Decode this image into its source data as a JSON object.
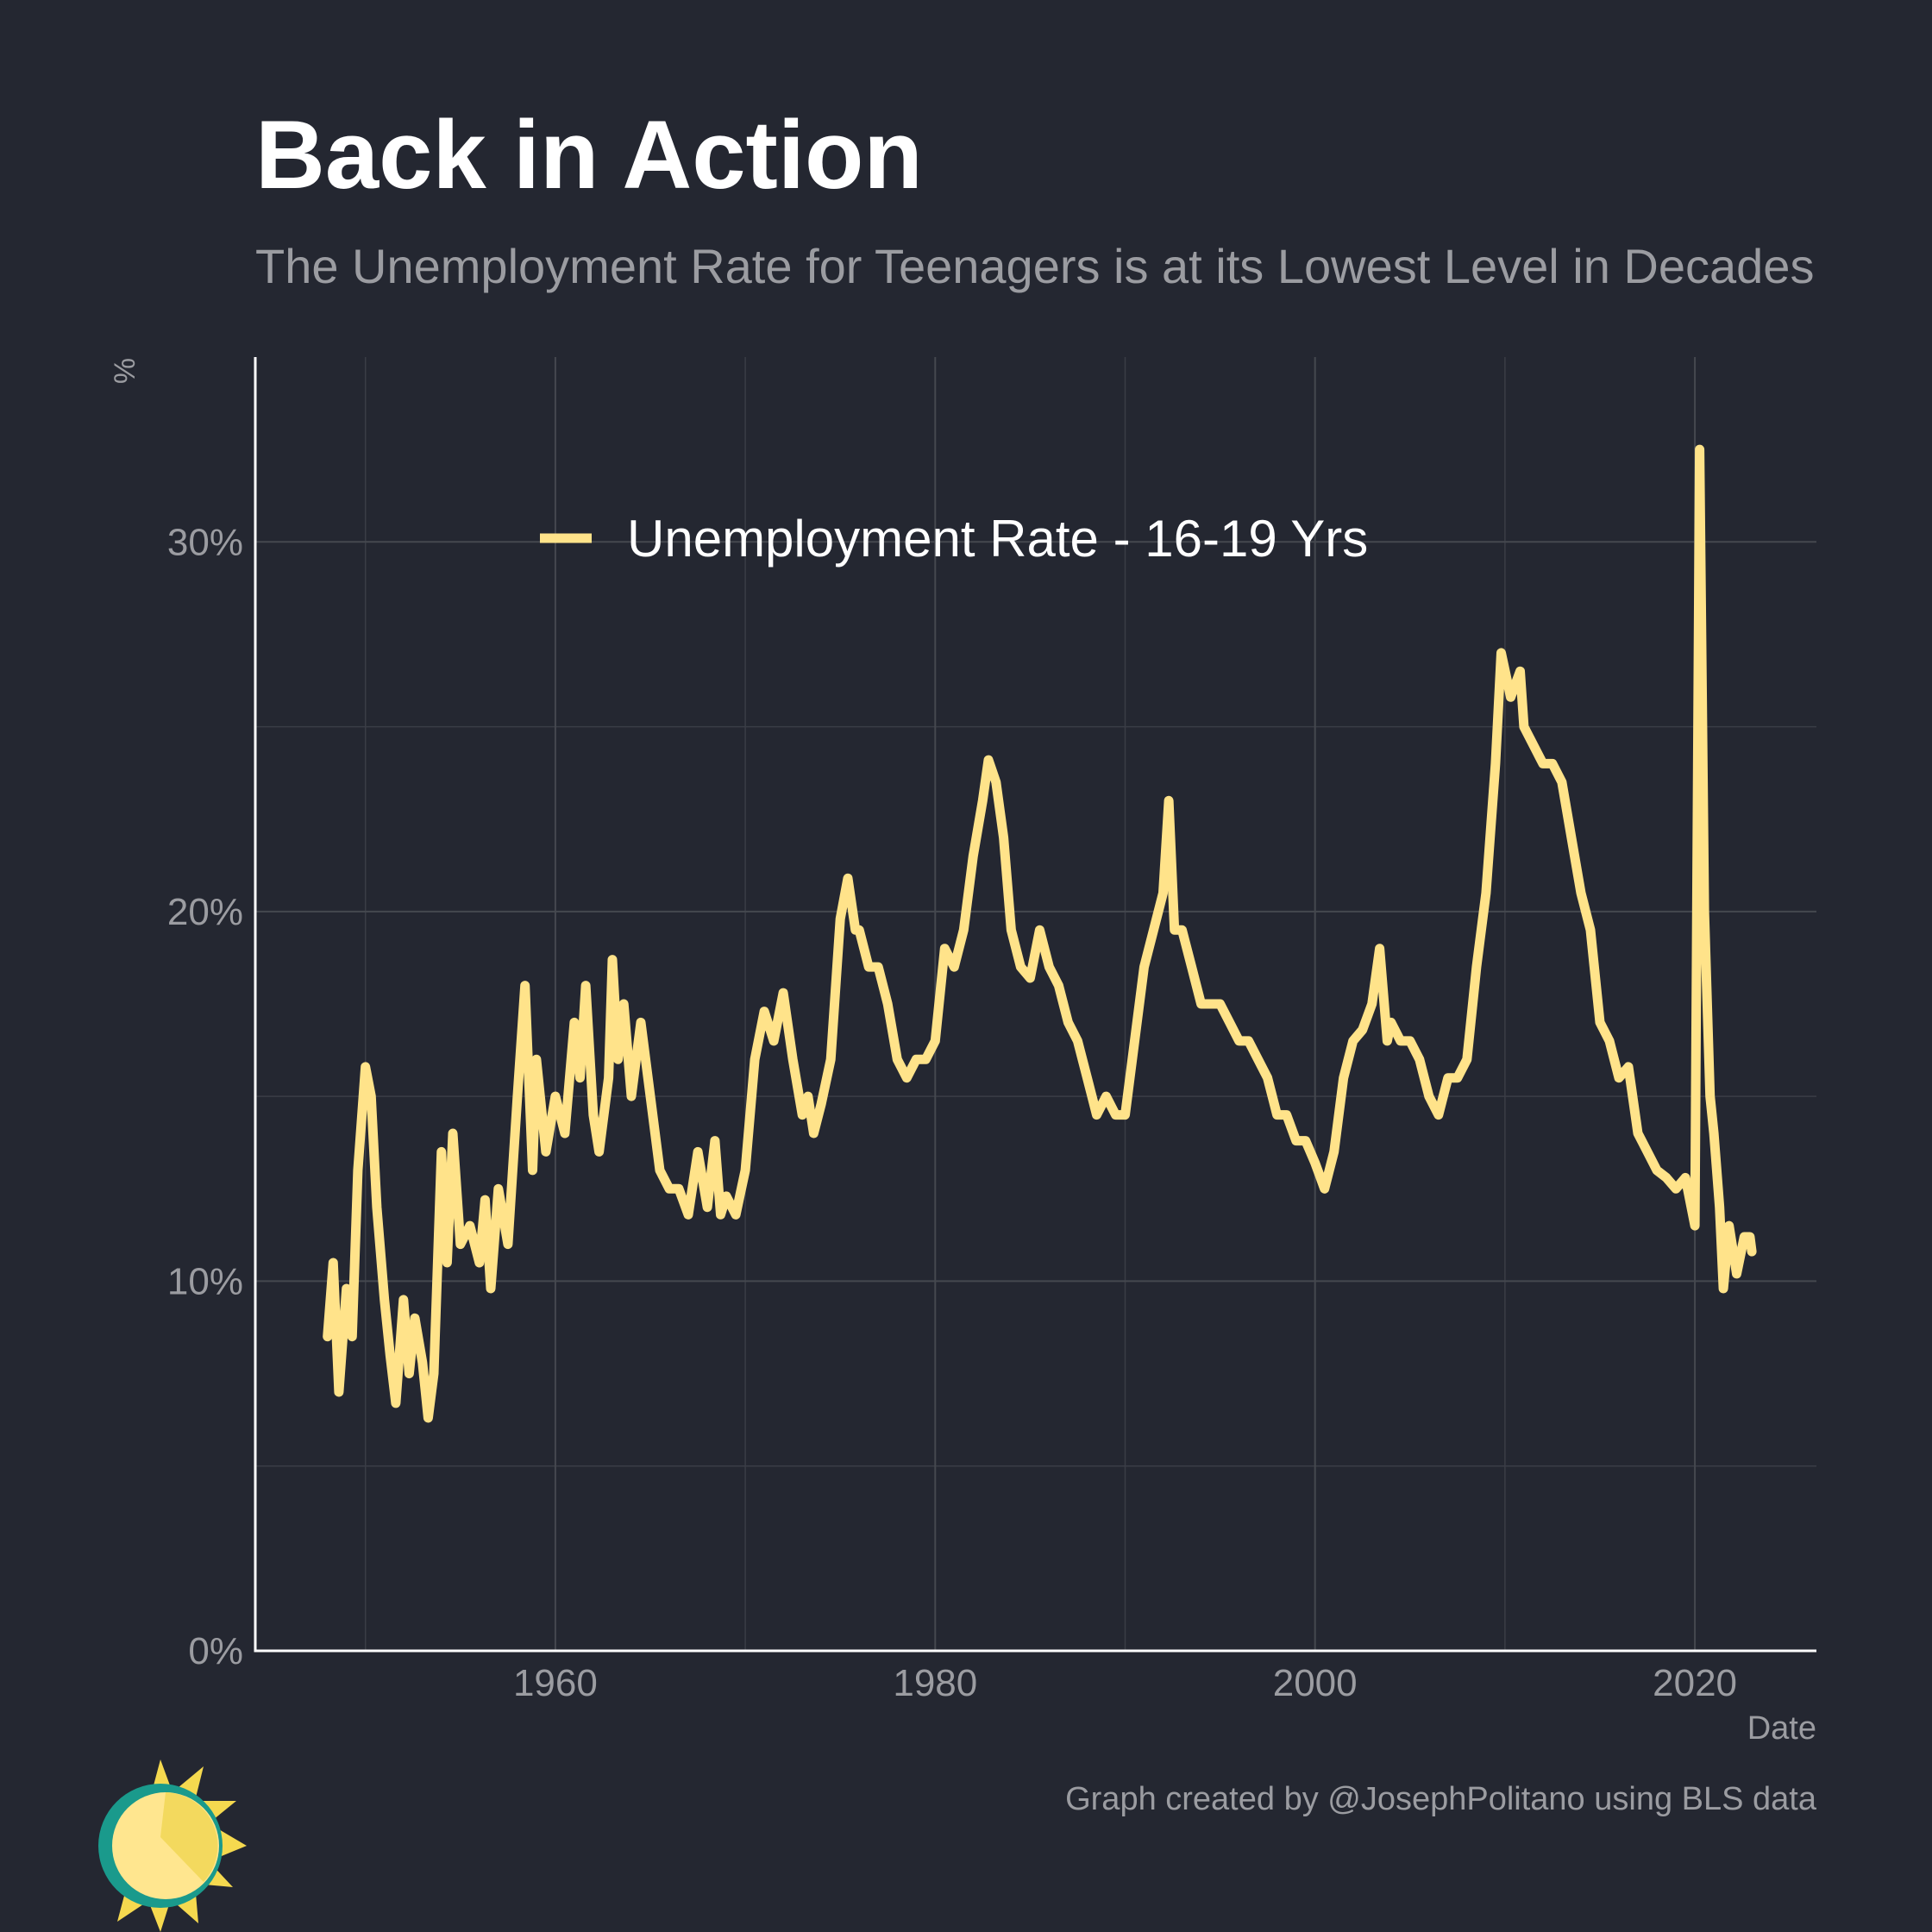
{
  "chart_data": {
    "type": "line",
    "title": "Back in Action",
    "subtitle": "The Unemployment Rate for Teenagers is at its Lowest Level in Decades",
    "y_label": "%",
    "x_label": "Date",
    "caption": "Graph created by @JosephPolitano using BLS data",
    "legend": "top",
    "grid": true,
    "xlim": [
      1944.2,
      2026.4
    ],
    "xticks": [
      1960,
      1980,
      2000,
      2020
    ],
    "xminor": [
      1950,
      1970,
      1990,
      2010
    ],
    "ylim": [
      0,
      35
    ],
    "yticks": [
      {
        "value": 0,
        "label": "0%"
      },
      {
        "value": 10,
        "label": "10%"
      },
      {
        "value": 20,
        "label": "20%"
      },
      {
        "value": 30,
        "label": "30%"
      }
    ],
    "yminor": [
      5,
      15,
      25
    ],
    "x": [
      1948,
      1948.3,
      1948.6,
      1949,
      1949.3,
      1949.6,
      1950,
      1950.3,
      1950.6,
      1951,
      1951.3,
      1951.6,
      1952,
      1952.3,
      1952.6,
      1953,
      1953.3,
      1953.6,
      1954,
      1954.3,
      1954.6,
      1955,
      1955.5,
      1956,
      1956.3,
      1956.6,
      1957,
      1957.5,
      1958,
      1958.4,
      1958.8,
      1959,
      1959.5,
      1960,
      1960.5,
      1961,
      1961.3,
      1961.6,
      1962,
      1962.3,
      1962.8,
      1963,
      1963.3,
      1963.6,
      1964,
      1964.5,
      1965,
      1965.5,
      1966,
      1966.5,
      1967,
      1967.5,
      1968,
      1968.4,
      1968.7,
      1969,
      1969.5,
      1970,
      1970.5,
      1971,
      1971.5,
      1972,
      1972.5,
      1973,
      1973.3,
      1973.6,
      1974,
      1974.5,
      1975,
      1975.4,
      1975.8,
      1976,
      1976.5,
      1977,
      1977.5,
      1978,
      1978.5,
      1979,
      1979.5,
      1980,
      1980.5,
      1981,
      1981.5,
      1982,
      1982.5,
      1982.8,
      1983.2,
      1983.6,
      1984,
      1984.5,
      1985,
      1985.5,
      1986,
      1986.5,
      1987,
      1987.5,
      1988,
      1988.5,
      1989,
      1989.5,
      1990,
      1990.5,
      1991,
      1991.5,
      1992,
      1992.3,
      1992.6,
      1993,
      1993.5,
      1994,
      1994.5,
      1995,
      1995.5,
      1996,
      1996.5,
      1997,
      1997.5,
      1998,
      1998.5,
      1999,
      1999.5,
      2000,
      2000.5,
      2001,
      2001.5,
      2002,
      2002.5,
      2003,
      2003.4,
      2003.8,
      2004,
      2004.5,
      2005,
      2005.5,
      2006,
      2006.5,
      2007,
      2007.5,
      2008,
      2008.5,
      2009,
      2009.5,
      2009.8,
      2010.3,
      2010.8,
      2011,
      2011.5,
      2012,
      2012.5,
      2013,
      2013.5,
      2014,
      2014.5,
      2015,
      2015.5,
      2016,
      2016.5,
      2017,
      2017.5,
      2018,
      2018.5,
      2019,
      2019.5,
      2020,
      2020.25,
      2020.5,
      2020.8,
      2021,
      2021.3,
      2021.5,
      2021.8,
      2022.2,
      2022.6,
      2022.9,
      2023
    ],
    "series": [
      {
        "name": "Unemployment Rate - 16-19 Yrs",
        "color": "#ffe38a",
        "values": [
          8.5,
          10.5,
          7.0,
          9.8,
          8.5,
          13,
          15.8,
          15,
          12,
          9.5,
          8.0,
          6.7,
          9.5,
          7.5,
          9.0,
          7.8,
          6.3,
          7.5,
          13.5,
          10.5,
          14,
          11,
          11.5,
          10.5,
          12.2,
          9.8,
          12.5,
          11,
          15,
          18,
          13,
          16,
          13.5,
          15,
          14,
          17,
          15.5,
          18,
          14.5,
          13.5,
          15.5,
          18.7,
          16,
          17.5,
          15,
          17,
          15,
          13,
          12.5,
          12.5,
          11.8,
          13.5,
          12,
          13.8,
          11.8,
          12.3,
          11.8,
          13,
          16,
          17.3,
          16.5,
          17.8,
          16,
          14.5,
          15,
          14,
          14.8,
          16,
          19.8,
          20.9,
          19.5,
          19.5,
          18.5,
          18.5,
          17.5,
          16,
          15.5,
          16,
          16,
          16.5,
          19,
          18.5,
          19.5,
          21.5,
          23,
          24.1,
          23.5,
          22,
          19.5,
          18.5,
          18.2,
          19.5,
          18.5,
          18,
          17,
          16.5,
          15.5,
          14.5,
          15,
          14.5,
          14.5,
          16.5,
          18.5,
          19.5,
          20.5,
          23,
          19.5,
          19.5,
          18.5,
          17.5,
          17.5,
          17.5,
          17,
          16.5,
          16.5,
          16,
          15.5,
          14.5,
          14.5,
          13.8,
          13.8,
          13.2,
          12.5,
          13.5,
          15.5,
          16.5,
          16.8,
          17.5,
          19,
          16.5,
          17,
          16.5,
          16.5,
          16,
          15,
          14.5,
          15.5,
          15.5,
          16,
          18.5,
          20.5,
          24,
          27,
          25.8,
          26.5,
          25,
          24.5,
          24,
          24,
          23.5,
          22,
          20.5,
          19.5,
          17,
          16.5,
          15.5,
          15.8,
          14,
          13.5,
          13,
          12.8,
          12.5,
          12.8,
          11.5,
          32.5,
          20,
          15,
          14,
          12,
          9.8,
          11.5,
          10.2,
          11.2,
          11.2,
          10.8
        ]
      }
    ]
  }
}
